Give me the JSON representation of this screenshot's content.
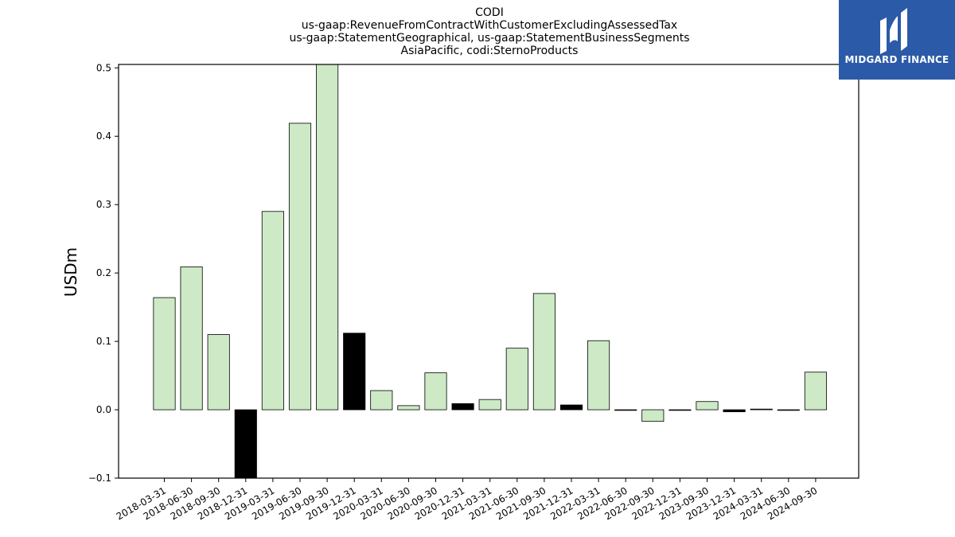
{
  "chart_data": {
    "type": "bar",
    "title_lines": [
      "CODI",
      "us-gaap:RevenueFromContractWithCustomerExcludingAssessedTax",
      "us-gaap:StatementGeographical, us-gaap:StatementBusinessSegments",
      "AsiaPacific, codi:SternoProducts"
    ],
    "ylabel": "USDm",
    "ylim": [
      -0.1,
      0.505
    ],
    "yticks": [
      -0.1,
      0.0,
      0.1,
      0.2,
      0.3,
      0.4,
      0.5
    ],
    "ytick_labels": [
      "−0.1",
      "0.0",
      "0.1",
      "0.2",
      "0.3",
      "0.4",
      "0.5"
    ],
    "categories": [
      "2018-03-31",
      "2018-06-30",
      "2018-09-30",
      "2018-12-31",
      "2019-03-31",
      "2019-06-30",
      "2019-09-30",
      "2019-12-31",
      "2020-03-31",
      "2020-06-30",
      "2020-09-30",
      "2020-12-31",
      "2021-03-31",
      "2021-06-30",
      "2021-09-30",
      "2021-12-31",
      "2022-03-31",
      "2022-06-30",
      "2022-09-30",
      "2022-12-31",
      "2023-09-30",
      "2023-12-31",
      "2024-03-31",
      "2024-06-30",
      "2024-09-30"
    ],
    "values": [
      0.164,
      0.209,
      0.11,
      -0.105,
      0.29,
      0.419,
      0.51,
      0.112,
      0.028,
      0.006,
      0.054,
      0.009,
      0.015,
      0.09,
      0.17,
      0.007,
      0.101,
      0.0,
      -0.017,
      0.0,
      0.012,
      -0.003,
      0.001,
      0.0,
      0.055
    ],
    "highlight": [
      false,
      false,
      false,
      true,
      false,
      false,
      false,
      true,
      false,
      false,
      false,
      true,
      false,
      false,
      false,
      true,
      false,
      false,
      false,
      false,
      false,
      true,
      false,
      false,
      false
    ],
    "colors": {
      "bar": "#cde9c6",
      "highlight": "#000000",
      "edge": "#000000"
    }
  },
  "logo": {
    "text": "MIDGARD FINANCE",
    "bg": "#2b5aa8"
  }
}
